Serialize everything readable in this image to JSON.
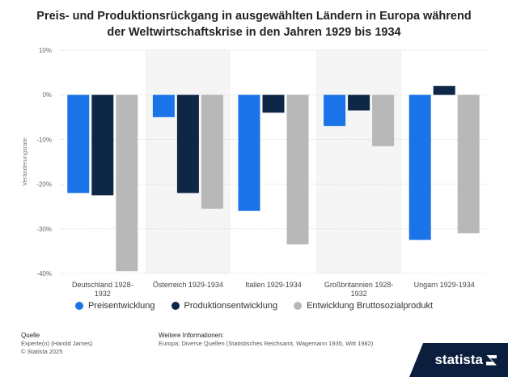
{
  "title_line1": "Preis- und Produktionsrückgang in ausgewählten Ländern in Europa während",
  "title_line2": "der Weltwirtschaftskrise in den Jahren 1929 bis 1934",
  "chart_data": {
    "type": "bar",
    "title": "Preis- und Produktionsrückgang in ausgewählten Ländern in Europa während der Weltwirtschaftskrise in den Jahren 1929 bis 1934",
    "xlabel": "",
    "ylabel": "Veränderungsrate",
    "ylim": [
      -40,
      10
    ],
    "yticks": [
      10,
      0,
      -10,
      -20,
      -30,
      -40
    ],
    "ytick_labels": [
      "10%",
      "0%",
      "-10%",
      "-20%",
      "-30%",
      "-40%"
    ],
    "categories": [
      [
        "Deutschland 1928-",
        "1932"
      ],
      [
        "Österreich 1929-1934"
      ],
      [
        "Italien 1929-1934"
      ],
      [
        "Großbritannien 1928-",
        "1932"
      ],
      [
        "Ungarn 1929-1934"
      ]
    ],
    "series": [
      {
        "name": "Preisentwicklung",
        "color": "#1a73e8",
        "values": [
          -22,
          -5,
          -26,
          -7,
          -32.5
        ]
      },
      {
        "name": "Produktionsentwicklung",
        "color": "#0f2747",
        "values": [
          -22.5,
          -22,
          -4,
          -3.5,
          2
        ]
      },
      {
        "name": "Entwicklung Bruttosozialprodukt",
        "color": "#b8b8b8",
        "values": [
          -39.5,
          -25.5,
          -33.5,
          -11.5,
          -31
        ]
      }
    ],
    "grid": true,
    "legend_position": "bottom"
  },
  "footer": {
    "source_heading": "Quelle",
    "source_lines": [
      "Experte(n) (Harold James)",
      "© Statista 2025"
    ],
    "info_heading": "Weitere Informationen:",
    "info_text": "Europa; Diverse Quellen (Statistisches Reichsamt, Wagemann 1935, Witt 1982)"
  },
  "brand": "statista"
}
